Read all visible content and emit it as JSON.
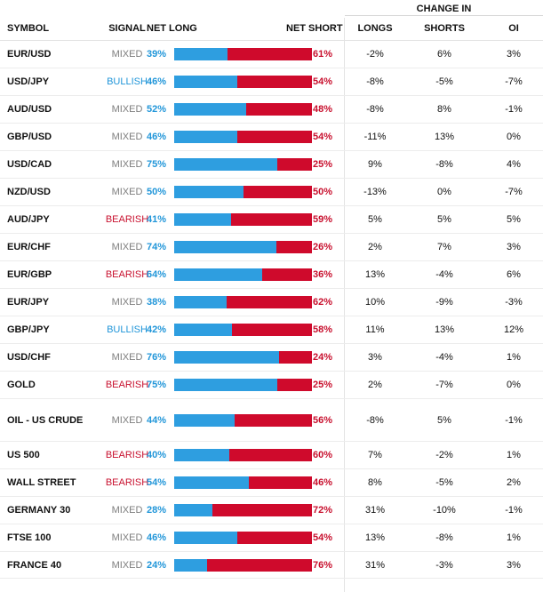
{
  "header": {
    "change_in": "CHANGE IN",
    "symbol": "SYMBOL",
    "signal": "SIGNAL",
    "net_long": "NET LONG",
    "net_short": "NET SHORT",
    "longs": "LONGS",
    "shorts": "SHORTS",
    "oi": "OI"
  },
  "colors": {
    "long": "#2e9ee0",
    "short": "#cf0a2c",
    "mixed": "#7d7d7d",
    "bullish": "#2196d9",
    "bearish": "#c8102e"
  },
  "rows": [
    {
      "symbol": "EUR/USD",
      "signal": "MIXED",
      "signal_type": "mixed",
      "net_long": "39%",
      "long_pct": 39,
      "net_short": "61%",
      "longs": "-2%",
      "shorts": "6%",
      "oi": "3%"
    },
    {
      "symbol": "USD/JPY",
      "signal": "BULLISH",
      "signal_type": "bullish",
      "net_long": "46%",
      "long_pct": 46,
      "net_short": "54%",
      "longs": "-8%",
      "shorts": "-5%",
      "oi": "-7%"
    },
    {
      "symbol": "AUD/USD",
      "signal": "MIXED",
      "signal_type": "mixed",
      "net_long": "52%",
      "long_pct": 52,
      "net_short": "48%",
      "longs": "-8%",
      "shorts": "8%",
      "oi": "-1%"
    },
    {
      "symbol": "GBP/USD",
      "signal": "MIXED",
      "signal_type": "mixed",
      "net_long": "46%",
      "long_pct": 46,
      "net_short": "54%",
      "longs": "-11%",
      "shorts": "13%",
      "oi": "0%"
    },
    {
      "symbol": "USD/CAD",
      "signal": "MIXED",
      "signal_type": "mixed",
      "net_long": "75%",
      "long_pct": 75,
      "net_short": "25%",
      "longs": "9%",
      "shorts": "-8%",
      "oi": "4%"
    },
    {
      "symbol": "NZD/USD",
      "signal": "MIXED",
      "signal_type": "mixed",
      "net_long": "50%",
      "long_pct": 50,
      "net_short": "50%",
      "longs": "-13%",
      "shorts": "0%",
      "oi": "-7%"
    },
    {
      "symbol": "AUD/JPY",
      "signal": "BEARISH",
      "signal_type": "bearish",
      "net_long": "41%",
      "long_pct": 41,
      "net_short": "59%",
      "longs": "5%",
      "shorts": "5%",
      "oi": "5%"
    },
    {
      "symbol": "EUR/CHF",
      "signal": "MIXED",
      "signal_type": "mixed",
      "net_long": "74%",
      "long_pct": 74,
      "net_short": "26%",
      "longs": "2%",
      "shorts": "7%",
      "oi": "3%"
    },
    {
      "symbol": "EUR/GBP",
      "signal": "BEARISH",
      "signal_type": "bearish",
      "net_long": "64%",
      "long_pct": 64,
      "net_short": "36%",
      "longs": "13%",
      "shorts": "-4%",
      "oi": "6%"
    },
    {
      "symbol": "EUR/JPY",
      "signal": "MIXED",
      "signal_type": "mixed",
      "net_long": "38%",
      "long_pct": 38,
      "net_short": "62%",
      "longs": "10%",
      "shorts": "-9%",
      "oi": "-3%"
    },
    {
      "symbol": "GBP/JPY",
      "signal": "BULLISH",
      "signal_type": "bullish",
      "net_long": "42%",
      "long_pct": 42,
      "net_short": "58%",
      "longs": "11%",
      "shorts": "13%",
      "oi": "12%"
    },
    {
      "symbol": "USD/CHF",
      "signal": "MIXED",
      "signal_type": "mixed",
      "net_long": "76%",
      "long_pct": 76,
      "net_short": "24%",
      "longs": "3%",
      "shorts": "-4%",
      "oi": "1%"
    },
    {
      "symbol": "GOLD",
      "signal": "BEARISH",
      "signal_type": "bearish",
      "net_long": "75%",
      "long_pct": 75,
      "net_short": "25%",
      "longs": "2%",
      "shorts": "-7%",
      "oi": "0%"
    },
    {
      "symbol": "OIL - US CRUDE",
      "signal": "MIXED",
      "signal_type": "mixed",
      "net_long": "44%",
      "long_pct": 44,
      "net_short": "56%",
      "longs": "-8%",
      "shorts": "5%",
      "oi": "-1%"
    },
    {
      "symbol": "US 500",
      "signal": "BEARISH",
      "signal_type": "bearish",
      "net_long": "40%",
      "long_pct": 40,
      "net_short": "60%",
      "longs": "7%",
      "shorts": "-2%",
      "oi": "1%"
    },
    {
      "symbol": "WALL STREET",
      "signal": "BEARISH",
      "signal_type": "bearish",
      "net_long": "54%",
      "long_pct": 54,
      "net_short": "46%",
      "longs": "8%",
      "shorts": "-5%",
      "oi": "2%"
    },
    {
      "symbol": "GERMANY 30",
      "signal": "MIXED",
      "signal_type": "mixed",
      "net_long": "28%",
      "long_pct": 28,
      "net_short": "72%",
      "longs": "31%",
      "shorts": "-10%",
      "oi": "-1%"
    },
    {
      "symbol": "FTSE 100",
      "signal": "MIXED",
      "signal_type": "mixed",
      "net_long": "46%",
      "long_pct": 46,
      "net_short": "54%",
      "longs": "13%",
      "shorts": "-8%",
      "oi": "1%"
    },
    {
      "symbol": "FRANCE 40",
      "signal": "MIXED",
      "signal_type": "mixed",
      "net_long": "24%",
      "long_pct": 24,
      "net_short": "76%",
      "longs": "31%",
      "shorts": "-3%",
      "oi": "3%"
    }
  ]
}
